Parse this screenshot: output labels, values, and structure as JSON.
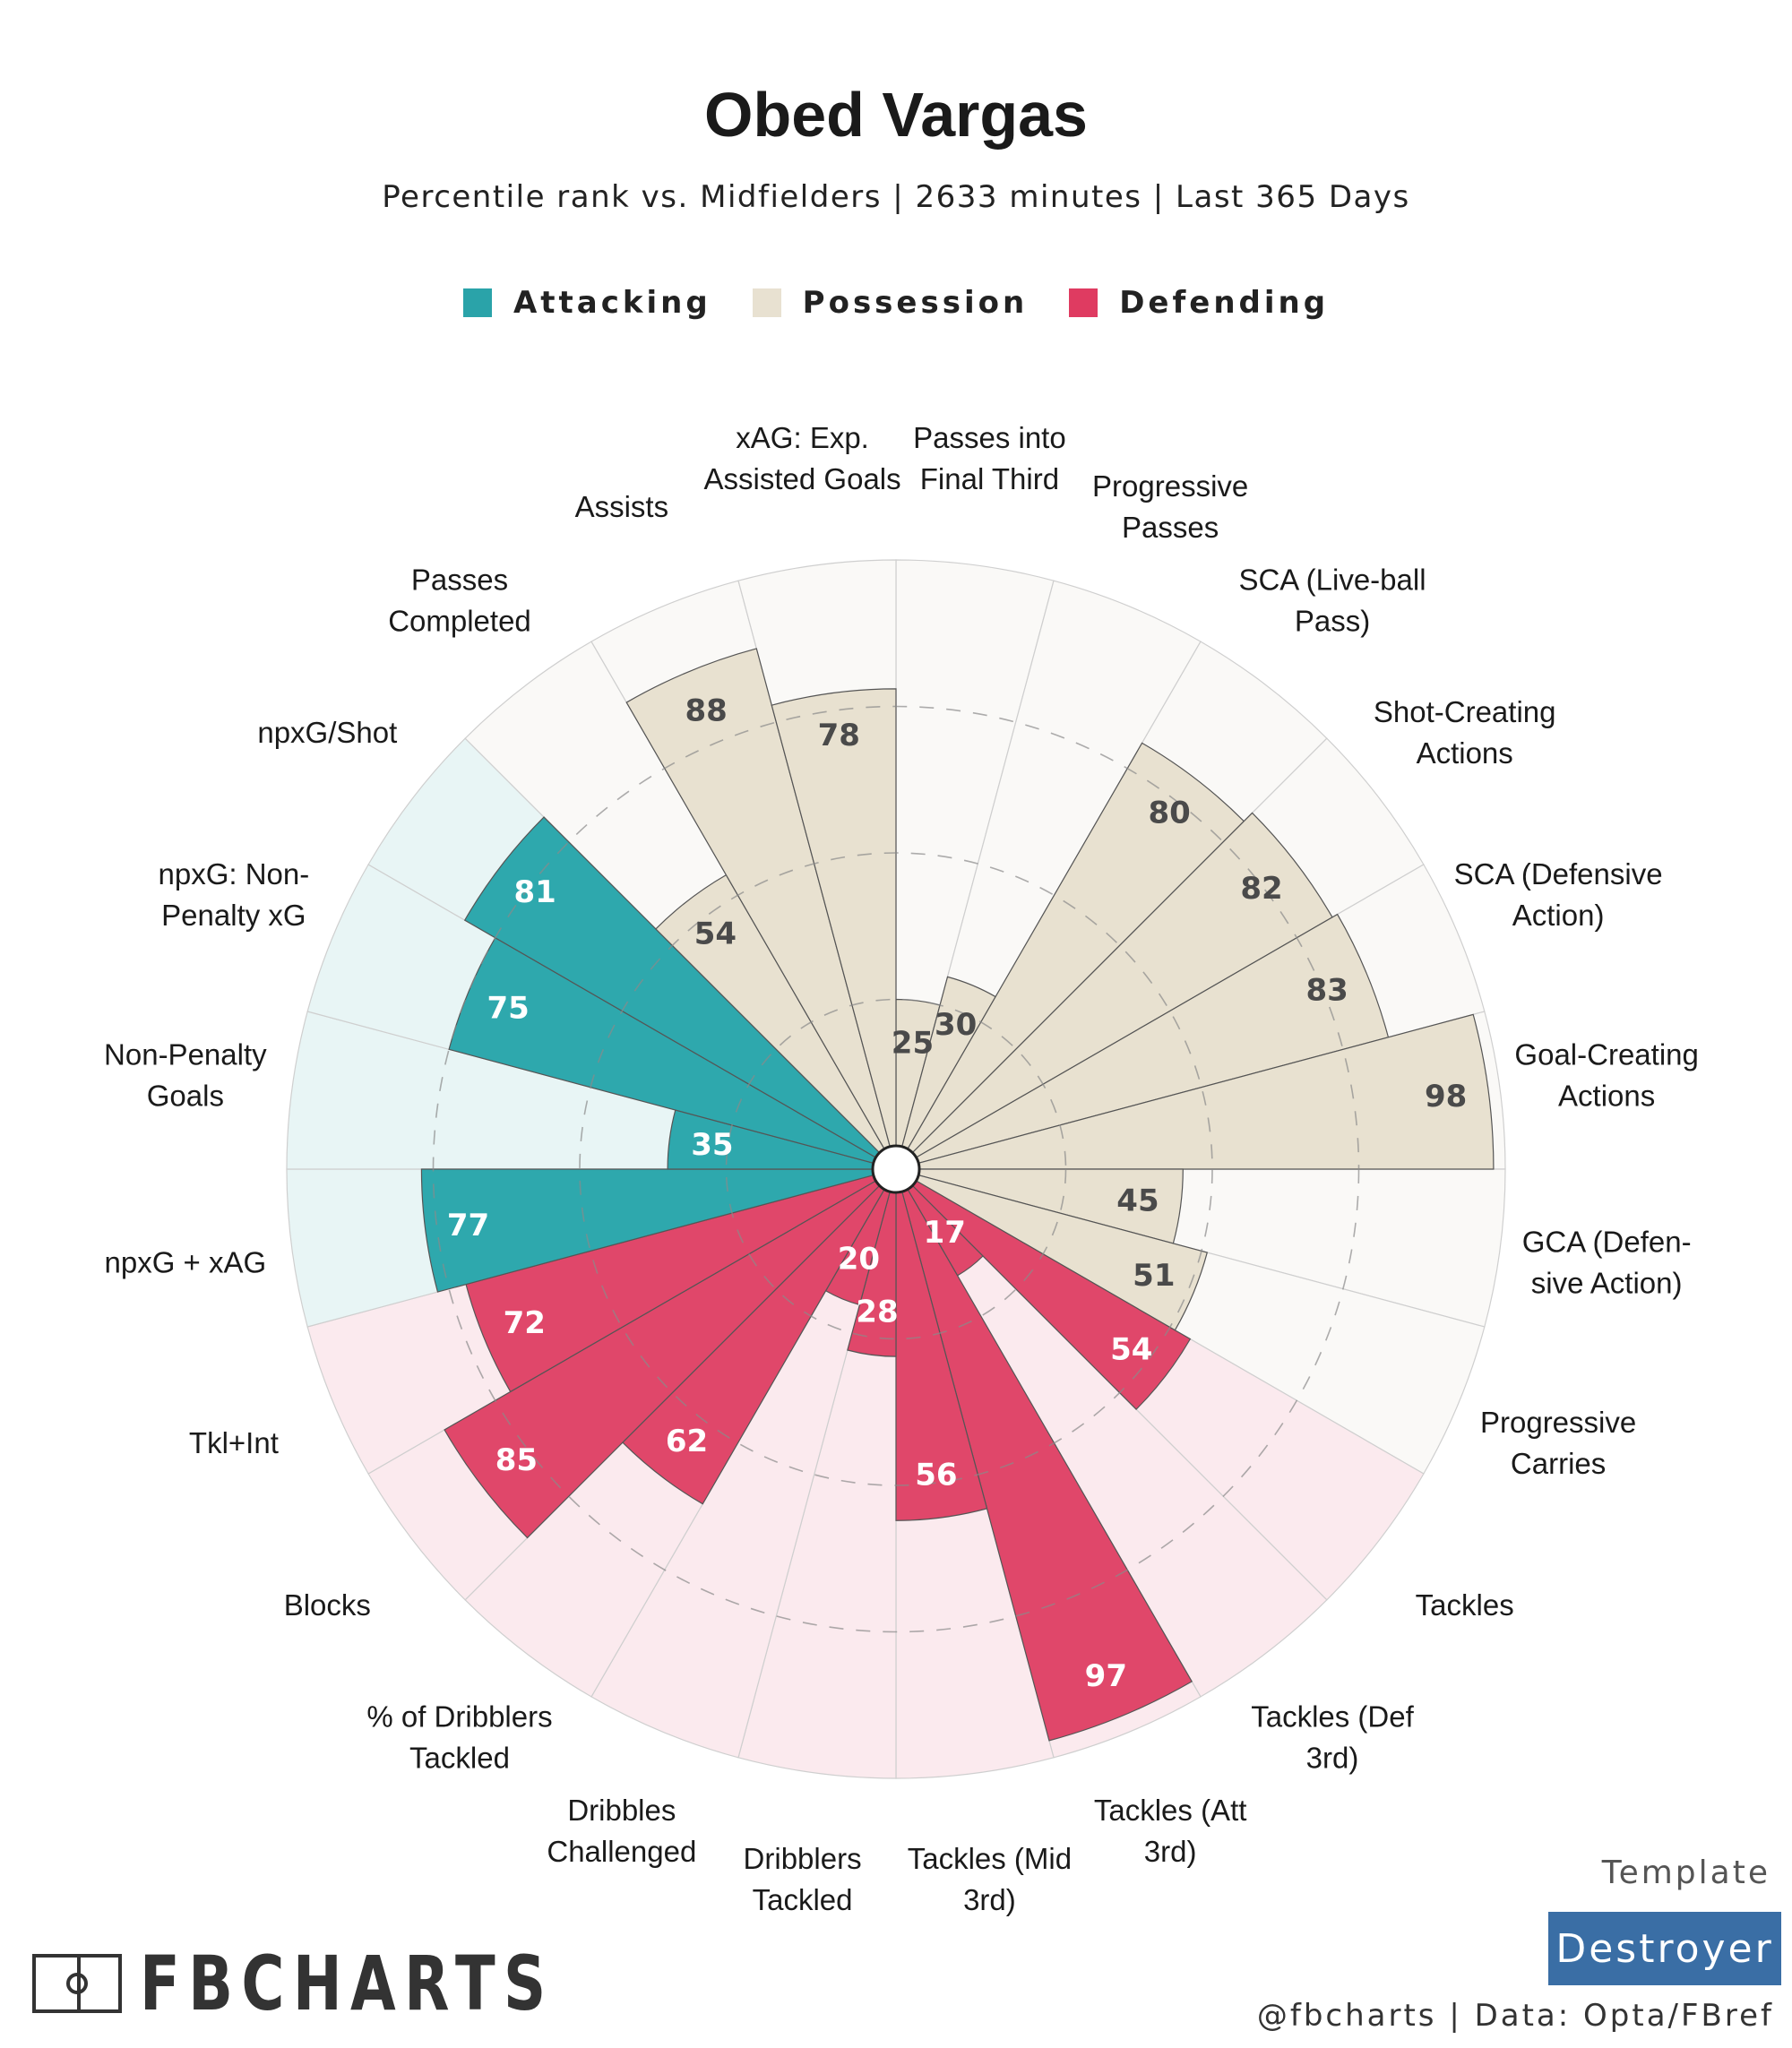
{
  "title": "Obed Vargas",
  "subtitle": "Percentile rank vs. Midfielders | 2633 minutes | Last 365 Days",
  "legend": [
    {
      "label": "Attacking",
      "color": "#2aa3a9"
    },
    {
      "label": "Possession",
      "color": "#e8e1d1"
    },
    {
      "label": "Defending",
      "color": "#df3b61"
    }
  ],
  "colors": {
    "attacking": "#2ea8ad",
    "attacking_bg": "#e8f5f5",
    "possession": "#e8e1d0",
    "possession_bg": "#faf9f7",
    "defending": "#e0476a",
    "defending_bg": "#fbeaee"
  },
  "chart_data": {
    "type": "polar-bar",
    "title": "Obed Vargas",
    "value_range": [
      0,
      100
    ],
    "gridlines": [
      25,
      50,
      75
    ],
    "params": [
      {
        "name": "Passes into Final Third",
        "label_lines": [
          "Passes into",
          "Final Third"
        ],
        "value": 25,
        "group": "possession"
      },
      {
        "name": "Progressive Passes",
        "label_lines": [
          "Progressive",
          "Passes"
        ],
        "value": 30,
        "group": "possession"
      },
      {
        "name": "SCA (Live-ball Pass)",
        "label_lines": [
          "SCA (Live-ball",
          "Pass)"
        ],
        "value": 80,
        "group": "possession"
      },
      {
        "name": "Shot-Creating Actions",
        "label_lines": [
          "Shot-Creating",
          "Actions"
        ],
        "value": 82,
        "group": "possession"
      },
      {
        "name": "SCA (Defensive Action)",
        "label_lines": [
          "SCA (Defensive",
          "Action)"
        ],
        "value": 83,
        "group": "possession"
      },
      {
        "name": "Goal-Creating Actions",
        "label_lines": [
          "Goal-Creating",
          "Actions"
        ],
        "value": 98,
        "group": "possession"
      },
      {
        "name": "GCA (Defensive Action)",
        "label_lines": [
          "GCA (Defen-",
          "sive Action)"
        ],
        "value": 45,
        "group": "possession"
      },
      {
        "name": "Progressive Carries",
        "label_lines": [
          "Progressive",
          "Carries"
        ],
        "value": 51,
        "group": "possession"
      },
      {
        "name": "Tackles",
        "label_lines": [
          "Tackles"
        ],
        "value": 54,
        "group": "defending"
      },
      {
        "name": "Tackles (Def 3rd)",
        "label_lines": [
          "Tackles (Def",
          "3rd)"
        ],
        "value": 17,
        "group": "defending"
      },
      {
        "name": "Tackles (Att 3rd)",
        "label_lines": [
          "Tackles (Att",
          "3rd)"
        ],
        "value": 97,
        "group": "defending"
      },
      {
        "name": "Tackles (Mid 3rd)",
        "label_lines": [
          "Tackles (Mid",
          "3rd)"
        ],
        "value": 56,
        "group": "defending"
      },
      {
        "name": "Dribblers Tackled",
        "label_lines": [
          "Dribblers",
          "Tackled"
        ],
        "value": 28,
        "group": "defending"
      },
      {
        "name": "Dribbles Challenged",
        "label_lines": [
          "Dribbles",
          "Challenged"
        ],
        "value": 20,
        "group": "defending"
      },
      {
        "name": "% of Dribblers Tackled",
        "label_lines": [
          "% of Dribblers",
          "Tackled"
        ],
        "value": 62,
        "group": "defending"
      },
      {
        "name": "Blocks",
        "label_lines": [
          "Blocks"
        ],
        "value": 85,
        "group": "defending"
      },
      {
        "name": "Tkl+Int",
        "label_lines": [
          "Tkl+Int"
        ],
        "value": 72,
        "group": "defending"
      },
      {
        "name": "npxG + xAG",
        "label_lines": [
          "npxG + xAG"
        ],
        "value": 77,
        "group": "attacking"
      },
      {
        "name": "Non-Penalty Goals",
        "label_lines": [
          "Non-Penalty",
          "Goals"
        ],
        "value": 35,
        "group": "attacking"
      },
      {
        "name": "npxG: Non-Penalty xG",
        "label_lines": [
          "npxG: Non-",
          "Penalty xG"
        ],
        "value": 75,
        "group": "attacking"
      },
      {
        "name": "npxG/Shot",
        "label_lines": [
          "npxG/Shot"
        ],
        "value": 81,
        "group": "attacking"
      },
      {
        "name": "Passes Completed",
        "label_lines": [
          "Passes",
          "Completed"
        ],
        "value": 54,
        "group": "possession"
      },
      {
        "name": "Assists",
        "label_lines": [
          "Assists"
        ],
        "value": 88,
        "group": "possession"
      },
      {
        "name": "xAG: Exp. Assisted Goals",
        "label_lines": [
          "xAG: Exp.",
          "Assisted Goals"
        ],
        "value": 78,
        "group": "possession"
      }
    ]
  },
  "footer": {
    "brand": "FBCHARTS",
    "template_label": "Template",
    "template_name": "Destroyer",
    "credit": "@fbcharts | Data: Opta/FBref"
  }
}
